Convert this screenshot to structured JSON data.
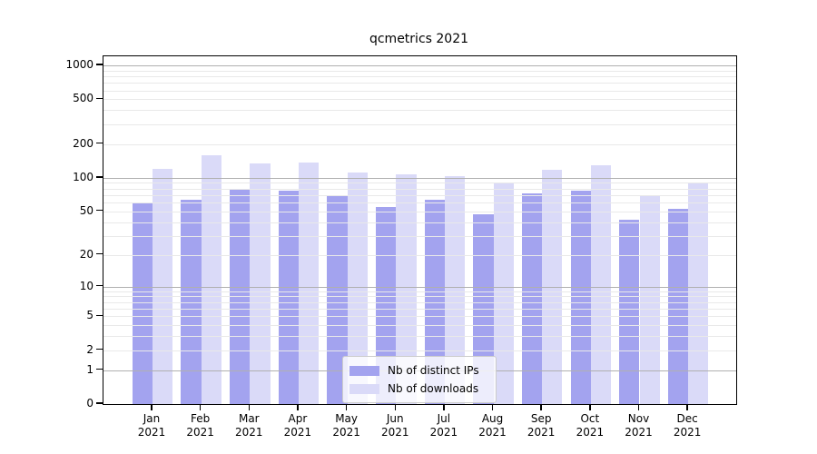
{
  "chart_data": {
    "type": "bar",
    "title": "qcmetrics 2021",
    "categories": [
      "Jan",
      "Feb",
      "Mar",
      "Apr",
      "May",
      "Jun",
      "Jul",
      "Aug",
      "Sep",
      "Oct",
      "Nov",
      "Dec"
    ],
    "year_label": "2021",
    "series": [
      {
        "name": "Nb of distinct IPs",
        "color": "#a3a3ef",
        "values": [
          59,
          63,
          78,
          77,
          68,
          55,
          63,
          47,
          73,
          77,
          42,
          53
        ]
      },
      {
        "name": "Nb of downloads",
        "color": "#dadaf8",
        "values": [
          120,
          158,
          134,
          137,
          112,
          108,
          103,
          91,
          117,
          130,
          68,
          91
        ]
      }
    ],
    "xlabel": "",
    "ylabel": "",
    "yscale": "log1p",
    "yticks": [
      0,
      1,
      2,
      5,
      10,
      20,
      50,
      100,
      200,
      500,
      1000
    ],
    "ylim": [
      0,
      1200
    ],
    "grid": {
      "major_on": true,
      "minor_on": true,
      "major_color": "#b0b0b0",
      "minor_color": "#e9e9e9"
    },
    "legend": {
      "position": "lower-center"
    }
  }
}
